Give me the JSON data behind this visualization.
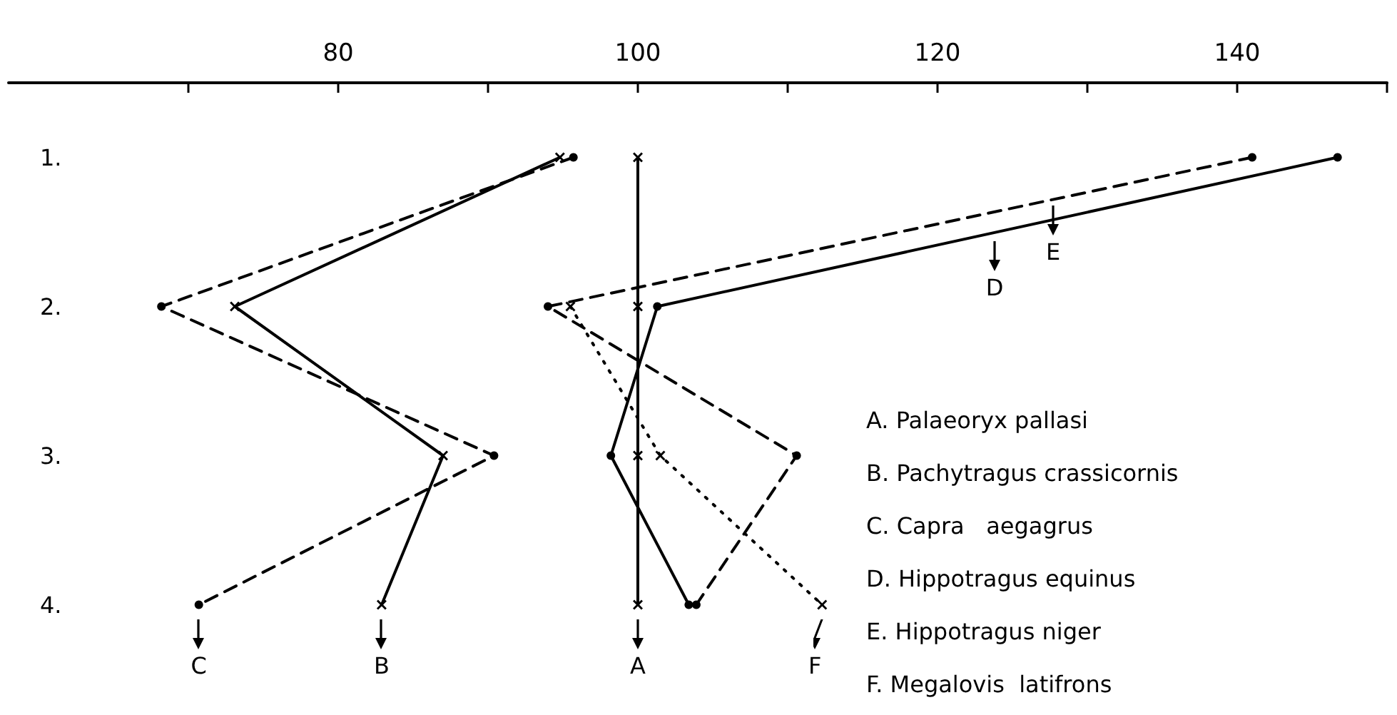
{
  "chart_data": {
    "type": "line",
    "orientation": "horizontal",
    "categories": [
      "1.",
      "2.",
      "3.",
      "4."
    ],
    "xlim": [
      58,
      150
    ],
    "xticks": [
      {
        "value": 70,
        "label": null
      },
      80,
      {
        "value": 90,
        "label": null
      },
      100,
      {
        "value": 110,
        "label": null
      },
      120,
      {
        "value": 130,
        "label": null
      },
      140,
      {
        "value": 150,
        "label": null
      }
    ],
    "series": [
      {
        "color": "#000000",
        "line_style": "solid",
        "marker": "cross",
        "values": [
          100,
          100,
          100,
          100
        ]
      },
      {
        "color": "#000000",
        "line_style": "solid",
        "marker": "cross",
        "values": [
          94.8,
          73.1,
          87.0,
          82.9
        ]
      },
      {
        "color": "#000000",
        "line_style": "dashed",
        "marker": "circle",
        "values": [
          95.7,
          68.2,
          90.4,
          70.7
        ]
      },
      {
        "color": "#000000",
        "line_style": "solid",
        "marker": "circle",
        "values": [
          146.7,
          101.3,
          98.2,
          103.4
        ]
      },
      {
        "color": "#000000",
        "line_style": "dashed",
        "marker": "circle",
        "values": [
          141.0,
          94.0,
          110.6,
          103.9
        ]
      },
      {
        "color": "#000000",
        "line_style": "dotted",
        "marker": "cross",
        "values": [
          null,
          95.5,
          101.5,
          112.3
        ]
      }
    ],
    "annotations": [
      "A. Palaeoryx pallasi",
      "B. Pachytragus crassicornis",
      "C. Capra   aegagrus",
      "D. Hippotragus equinus",
      "E. Hippotragus niger",
      "F. Megalovis  latifrons",
      "D",
      "E",
      {
        "text": "A",
        "x": 100,
        "y": "4."
      },
      {
        "text": "B",
        "x": 82.9,
        "y": "4."
      },
      {
        "text": "C",
        "x": 70.7,
        "y": "4."
      },
      {
        "text": "F",
        "x": 112.3,
        "y": "4."
      }
    ],
    "grid": false
  }
}
